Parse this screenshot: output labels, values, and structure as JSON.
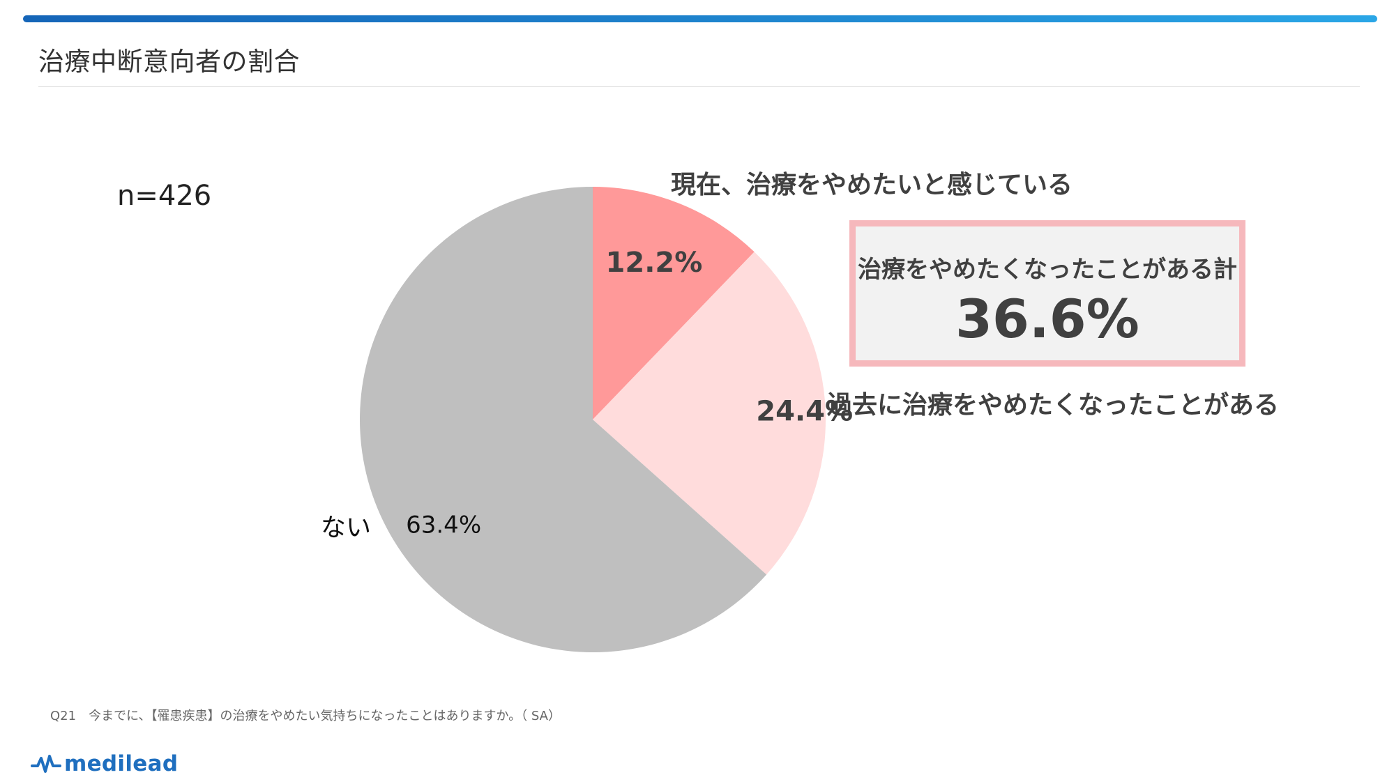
{
  "header": {
    "title": "治療中断意向者の割合"
  },
  "chart_data": {
    "type": "pie",
    "sample_size": "n=426",
    "slices": [
      {
        "label": "現在、治療をやめたいと感じている",
        "value": 12.2,
        "value_label": "12.2%",
        "color": "#ff9999"
      },
      {
        "label": "過去に治療をやめたくなったことがある",
        "value": 24.4,
        "value_label": "24.4%",
        "color": "#ffdcdc"
      },
      {
        "label": "ない",
        "value": 63.4,
        "value_label": "63.4%",
        "color": "#bfbfbf"
      }
    ],
    "start_angle_deg": 0,
    "direction": "clockwise",
    "callout": {
      "label": "治療をやめたくなったことがある計",
      "value_label": "36.6%",
      "border_color": "#f6b8bc",
      "background_color": "#f2f2f2"
    }
  },
  "footer": {
    "question": "Q21　今までに、【罹患疾患】の治療をやめたい気持ちになったことはありますか。（ SA）",
    "brand": "medilead",
    "brand_color": "#1f6fbf"
  }
}
